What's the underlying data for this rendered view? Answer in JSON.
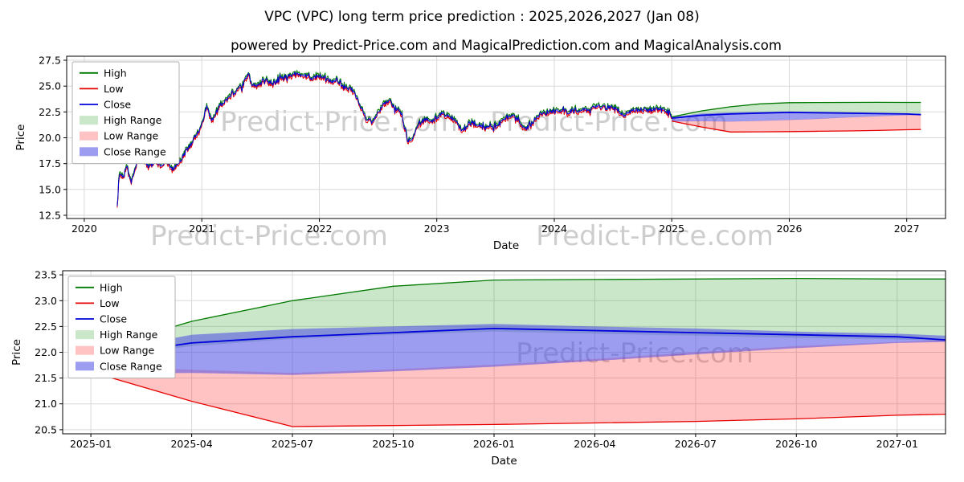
{
  "figure": {
    "title": "VPC (VPC) long term price prediction : 2025,2026,2027 (Jan 08)",
    "subtitle": "powered by Predict-Price.com and MagicalPrediction.com and MagicalAnalysis.com",
    "watermark_text": "Predict-Price.com",
    "background": "#ffffff"
  },
  "colors": {
    "high": "#007a00",
    "low": "#e60000",
    "close": "#0000dd",
    "high_fill": "rgba(44,160,44,0.25)",
    "low_fill": "rgba(255,40,40,0.28)",
    "close_fill": "rgba(75,75,230,0.55)",
    "grid": "#d8d8d8",
    "frame": "#000000"
  },
  "legend": {
    "items": [
      {
        "label": "High",
        "swatch": "line",
        "color_key": "high"
      },
      {
        "label": "Low",
        "swatch": "line",
        "color_key": "low"
      },
      {
        "label": "Close",
        "swatch": "line",
        "color_key": "close"
      },
      {
        "label": "High Range",
        "swatch": "patch",
        "color_key": "high_fill"
      },
      {
        "label": "Low Range",
        "swatch": "patch",
        "color_key": "low_fill"
      },
      {
        "label": "Close Range",
        "swatch": "patch",
        "color_key": "close_fill"
      }
    ]
  },
  "prediction": {
    "x": [
      2025.0,
      2025.25,
      2025.5,
      2025.75,
      2026.0,
      2026.25,
      2026.5,
      2026.75,
      2027.0,
      2027.12
    ],
    "close": [
      21.9,
      22.18,
      22.3,
      22.38,
      22.46,
      22.42,
      22.38,
      22.34,
      22.3,
      22.24
    ],
    "high_upper": [
      22.02,
      22.6,
      23.0,
      23.28,
      23.4,
      23.41,
      23.42,
      23.43,
      23.42,
      23.42
    ],
    "high_lower": [
      21.86,
      22.12,
      22.26,
      22.34,
      22.4,
      22.36,
      22.32,
      22.28,
      22.25,
      22.22
    ],
    "low_upper": [
      21.74,
      21.66,
      21.6,
      21.67,
      21.76,
      21.87,
      22.0,
      22.12,
      22.2,
      22.24
    ],
    "low_lower": [
      21.62,
      21.05,
      20.56,
      20.58,
      20.6,
      20.63,
      20.66,
      20.71,
      20.78,
      20.8
    ],
    "close_upper": [
      21.98,
      22.34,
      22.45,
      22.5,
      22.55,
      22.5,
      22.46,
      22.4,
      22.36,
      22.32
    ],
    "close_lower": [
      21.58,
      21.6,
      21.56,
      21.63,
      21.72,
      21.83,
      21.96,
      22.08,
      22.18,
      22.2
    ]
  },
  "chart_data": [
    {
      "id": "top",
      "type": "line",
      "title": "",
      "xlabel": "Date",
      "ylabel": "Price",
      "xlim": [
        2019.85,
        2027.33
      ],
      "ylim": [
        12.19,
        27.89
      ],
      "grid": true,
      "legend_position": "upper-left",
      "xticks": {
        "values": [
          2020,
          2021,
          2022,
          2023,
          2024,
          2025,
          2026,
          2027
        ],
        "labels": [
          "2020",
          "2021",
          "2022",
          "2023",
          "2024",
          "2025",
          "2026",
          "2027"
        ]
      },
      "yticks": {
        "values": [
          12.5,
          15.0,
          17.5,
          20.0,
          22.5,
          25.0,
          27.5
        ],
        "labels": [
          "12.5",
          "15.0",
          "17.5",
          "20.0",
          "22.5",
          "25.0",
          "27.5"
        ]
      },
      "series_names": [
        "High",
        "Low",
        "Close",
        "High Range",
        "Low Range",
        "Close Range"
      ],
      "historical": {
        "x": [
          2020.28,
          2020.3,
          2020.33,
          2020.36,
          2020.4,
          2020.45,
          2020.5,
          2020.55,
          2020.6,
          2020.65,
          2020.7,
          2020.75,
          2020.8,
          2020.85,
          2020.9,
          2020.95,
          2021.0,
          2021.04,
          2021.08,
          2021.12,
          2021.16,
          2021.2,
          2021.25,
          2021.3,
          2021.35,
          2021.4,
          2021.42,
          2021.46,
          2021.5,
          2021.55,
          2021.6,
          2021.65,
          2021.7,
          2021.75,
          2021.8,
          2021.85,
          2021.9,
          2021.95,
          2022.0,
          2022.05,
          2022.1,
          2022.15,
          2022.2,
          2022.25,
          2022.3,
          2022.35,
          2022.4,
          2022.45,
          2022.5,
          2022.55,
          2022.6,
          2022.65,
          2022.7,
          2022.75,
          2022.8,
          2022.85,
          2022.9,
          2022.95,
          2023.0,
          2023.05,
          2023.1,
          2023.15,
          2023.2,
          2023.25,
          2023.3,
          2023.35,
          2023.4,
          2023.45,
          2023.5,
          2023.55,
          2023.6,
          2023.65,
          2023.7,
          2023.75,
          2023.8,
          2023.85,
          2023.9,
          2023.95,
          2024.0,
          2024.06,
          2024.12,
          2024.18,
          2024.24,
          2024.3,
          2024.36,
          2024.42,
          2024.48,
          2024.54,
          2024.6,
          2024.66,
          2024.72,
          2024.78,
          2024.84,
          2024.9,
          2024.96,
          2025.0
        ],
        "close": [
          13.4,
          16.8,
          16.0,
          17.2,
          15.7,
          17.8,
          17.9,
          17.2,
          17.6,
          17.4,
          17.6,
          17.0,
          17.3,
          18.4,
          19.3,
          20.2,
          21.2,
          23.0,
          21.8,
          22.4,
          23.2,
          23.6,
          24.2,
          24.6,
          25.1,
          26.3,
          25.2,
          24.9,
          25.3,
          25.6,
          25.2,
          25.5,
          25.8,
          26.0,
          26.2,
          25.9,
          26.1,
          25.7,
          26.1,
          25.7,
          25.4,
          25.7,
          25.0,
          24.8,
          24.4,
          23.0,
          21.9,
          21.5,
          22.4,
          23.3,
          23.5,
          22.8,
          22.4,
          19.8,
          20.1,
          21.4,
          21.8,
          21.5,
          22.0,
          22.3,
          22.1,
          21.8,
          20.8,
          21.0,
          21.5,
          21.3,
          20.9,
          21.2,
          21.0,
          21.5,
          22.0,
          22.3,
          21.7,
          20.8,
          21.3,
          22.0,
          22.3,
          22.5,
          22.5,
          22.6,
          22.4,
          22.7,
          22.6,
          22.8,
          23.0,
          22.9,
          23.0,
          22.7,
          22.2,
          22.6,
          22.8,
          22.7,
          22.7,
          22.8,
          22.4,
          21.9
        ]
      },
      "noise": {
        "seed": 20250108,
        "step": 0.006,
        "amplitude": 0.24,
        "spread": 0.2,
        "spike_prob": 0.06,
        "spike_amp": 0.85,
        "hl_gap": 0.05
      }
    },
    {
      "id": "bottom",
      "type": "area",
      "title": "",
      "xlabel": "Date",
      "ylabel": "Price",
      "xlim": [
        2024.93,
        2027.12
      ],
      "ylim": [
        20.42,
        23.58
      ],
      "grid": true,
      "legend_position": "upper-left",
      "xticks": {
        "values": [
          2025.0,
          2025.25,
          2025.5,
          2025.75,
          2026.0,
          2026.25,
          2026.5,
          2026.75,
          2027.0
        ],
        "labels": [
          "2025-01",
          "2025-04",
          "2025-07",
          "2025-10",
          "2026-01",
          "2026-04",
          "2026-07",
          "2026-10",
          "2027-01"
        ]
      },
      "yticks": {
        "values": [
          20.5,
          21.0,
          21.5,
          22.0,
          22.5,
          23.0,
          23.5
        ],
        "labels": [
          "20.5",
          "21.0",
          "21.5",
          "22.0",
          "22.5",
          "23.0",
          "23.5"
        ]
      },
      "series_names": [
        "High",
        "Low",
        "Close",
        "High Range",
        "Low Range",
        "Close Range"
      ]
    }
  ]
}
